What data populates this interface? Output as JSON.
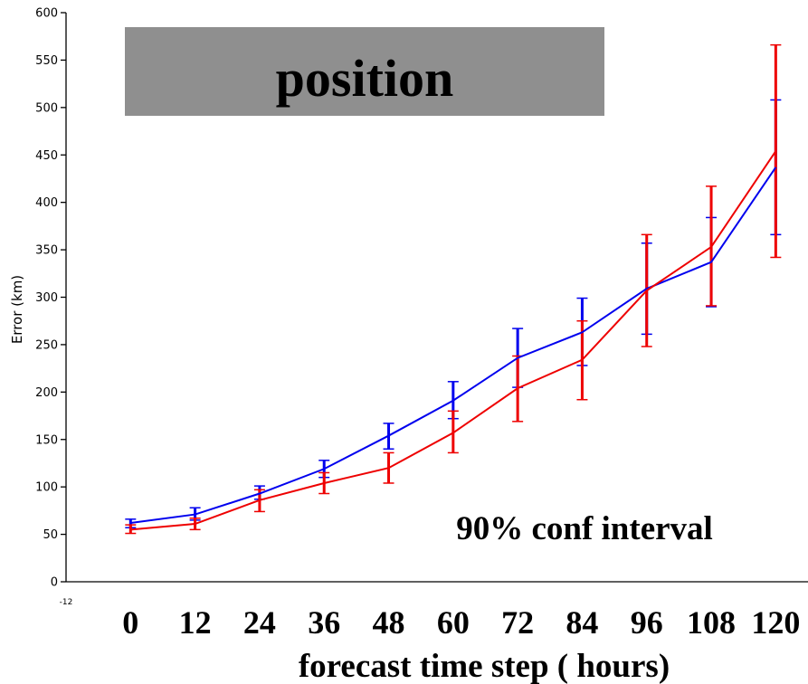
{
  "chart_data": {
    "type": "line",
    "title": "position",
    "xlabel": "forecast time step ( hours)",
    "ylabel": "Error (km)",
    "annotation": "90% conf interval",
    "x_axis_min_label": "-12",
    "xlim": [
      -12,
      126
    ],
    "ylim": [
      0,
      600
    ],
    "yticks": [
      0,
      50,
      100,
      150,
      200,
      250,
      300,
      350,
      400,
      450,
      500,
      550,
      600
    ],
    "x": [
      0,
      12,
      24,
      36,
      48,
      60,
      72,
      84,
      96,
      108,
      120
    ],
    "x_tick_labels": [
      "0",
      "12",
      "24",
      "36",
      "48",
      "60",
      "72",
      "84",
      "96",
      "108",
      "120"
    ],
    "grid": false,
    "legend": "none",
    "series": [
      {
        "color": "#0000ee",
        "values": [
          62,
          71,
          93,
          119,
          154,
          191,
          236,
          263,
          309,
          337,
          437
        ],
        "ci_low": [
          57,
          65,
          87,
          110,
          140,
          172,
          205,
          228,
          261,
          290,
          366
        ],
        "ci_high": [
          66,
          78,
          101,
          128,
          167,
          211,
          267,
          299,
          357,
          384,
          508
        ]
      },
      {
        "color": "#ee0000",
        "values": [
          55,
          61,
          86,
          104,
          120,
          157,
          204,
          234,
          307,
          353,
          454
        ],
        "ci_low": [
          51,
          55,
          74,
          93,
          104,
          136,
          169,
          192,
          248,
          291,
          342
        ],
        "ci_high": [
          60,
          67,
          97,
          115,
          136,
          180,
          238,
          275,
          366,
          417,
          566
        ]
      }
    ]
  }
}
